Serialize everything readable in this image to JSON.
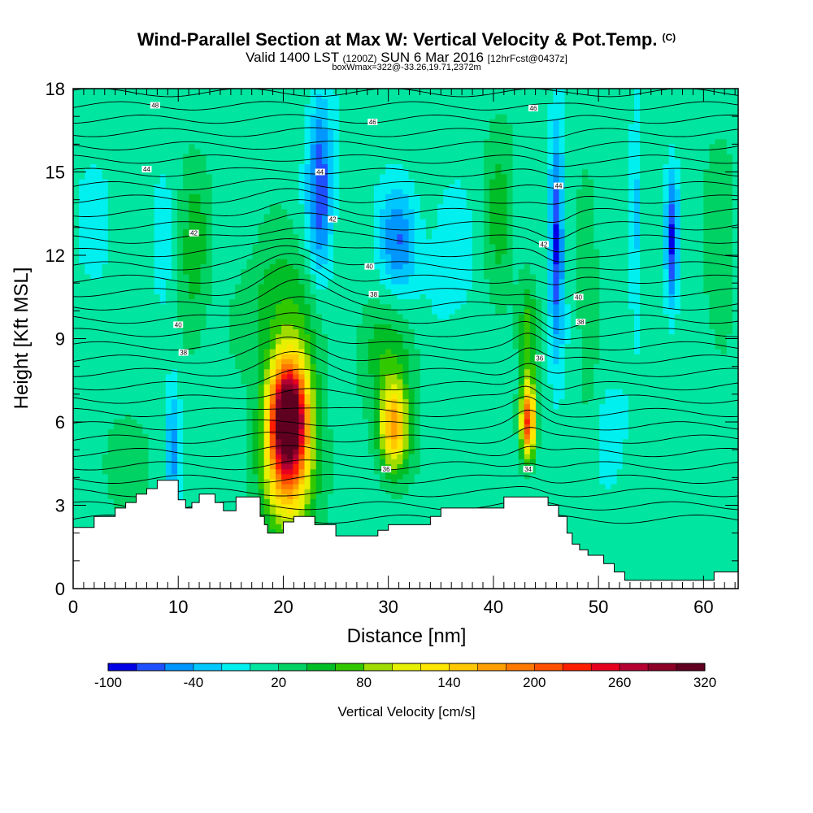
{
  "header": {
    "title": "Wind-Parallel Section at Max W: Vertical Velocity & Pot.Temp.",
    "copyright": "(C)",
    "valid_main": "Valid 1400 LST",
    "valid_utc": "(1200Z)",
    "valid_date": "SUN 6 Mar 2016",
    "forecast": "[12hrFcst@0437z]",
    "boxinfo": "boxWmax=322@-33.26,19.71,2372m"
  },
  "chart_data": {
    "type": "heatmap",
    "title": "Wind-Parallel Section at Max W: Vertical Velocity & Pot.Temp.",
    "xlabel": "Distance [nm]",
    "ylabel": "Height [Kft MSL]",
    "xlim": [
      0,
      63.3
    ],
    "ylim": [
      0,
      18
    ],
    "xticks": [
      0,
      10,
      20,
      30,
      40,
      50,
      60
    ],
    "yticks": [
      0,
      3,
      6,
      9,
      12,
      15,
      18
    ],
    "colorbar": {
      "label": "Vertical Velocity [cm/s]",
      "min": -100,
      "max": 320,
      "step": 20,
      "tick_labels": [
        "-100",
        "-40",
        "20",
        "80",
        "140",
        "200",
        "260",
        "320"
      ],
      "colors": [
        "#0000e6",
        "#1e50ff",
        "#0096ff",
        "#00c8ff",
        "#00f0f0",
        "#00e6a0",
        "#00d264",
        "#00be28",
        "#32c800",
        "#a0dc00",
        "#e6f000",
        "#ffe600",
        "#ffc800",
        "#ffa000",
        "#ff7800",
        "#ff5000",
        "#ff1e00",
        "#e6001e",
        "#b40032",
        "#8c0028",
        "#600020"
      ]
    },
    "background_value": 10,
    "updrafts": [
      {
        "x": 20.5,
        "z": 6.3,
        "sx": 1.8,
        "sz": 2.0,
        "w": 310
      },
      {
        "x": 20.5,
        "z": 4.2,
        "sx": 2.5,
        "sz": 2.6,
        "w": 130
      },
      {
        "x": 30.5,
        "z": 5.8,
        "sx": 1.4,
        "sz": 1.6,
        "w": 160
      },
      {
        "x": 43.3,
        "z": 6.0,
        "sx": 0.7,
        "sz": 1.3,
        "w": 210
      },
      {
        "x": 43.3,
        "z": 9.0,
        "sx": 0.8,
        "sz": 2.0,
        "w": 60
      },
      {
        "x": 20.0,
        "z": 10.0,
        "sx": 3.5,
        "sz": 2.5,
        "w": 50
      },
      {
        "x": 11.5,
        "z": 12.0,
        "sx": 1.5,
        "sz": 3.5,
        "w": 40
      },
      {
        "x": 30.0,
        "z": 8.5,
        "sx": 3.0,
        "sz": 2.0,
        "w": 40
      },
      {
        "x": 40.5,
        "z": 13.5,
        "sx": 1.5,
        "sz": 4.0,
        "w": 35
      },
      {
        "x": 49.0,
        "z": 10.0,
        "sx": 1.0,
        "sz": 5.0,
        "w": 30
      },
      {
        "x": 61.5,
        "z": 12.0,
        "sx": 1.5,
        "sz": 5.0,
        "w": 25
      },
      {
        "x": 5.0,
        "z": 4.5,
        "sx": 3.0,
        "sz": 1.8,
        "w": 20
      },
      {
        "x": 55.0,
        "z": 2.0,
        "sx": 5.0,
        "sz": 1.3,
        "w": 10
      }
    ],
    "downdrafts": [
      {
        "x": 23.5,
        "z": 14.5,
        "sx": 1.2,
        "sz": 3.5,
        "w": -85
      },
      {
        "x": 31.0,
        "z": 12.5,
        "sx": 1.8,
        "sz": 2.0,
        "w": -70
      },
      {
        "x": 46.0,
        "z": 12.5,
        "sx": 0.7,
        "sz": 4.0,
        "w": -95
      },
      {
        "x": 57.0,
        "z": 12.5,
        "sx": 0.6,
        "sz": 2.5,
        "w": -90
      },
      {
        "x": 53.5,
        "z": 13.5,
        "sx": 0.5,
        "sz": 3.0,
        "w": -45
      },
      {
        "x": 9.5,
        "z": 5.0,
        "sx": 0.7,
        "sz": 2.5,
        "w": -55
      },
      {
        "x": 8.5,
        "z": 12.0,
        "sx": 1.0,
        "sz": 3.0,
        "w": -20
      },
      {
        "x": 2.0,
        "z": 13.0,
        "sx": 2.0,
        "sz": 3.0,
        "w": -15
      },
      {
        "x": 36.0,
        "z": 11.5,
        "sx": 2.5,
        "sz": 3.0,
        "w": -20
      },
      {
        "x": 51.0,
        "z": 6.0,
        "sx": 3.0,
        "sz": 2.5,
        "w": -15
      }
    ],
    "terrain": {
      "x": [
        0,
        2,
        4,
        5,
        6,
        7,
        8,
        9.5,
        10,
        10.7,
        11.3,
        12,
        13.5,
        14.3,
        15.5,
        17.2,
        17.8,
        18.2,
        18.5,
        19,
        20,
        21,
        23,
        25,
        27,
        28,
        29,
        30,
        32,
        34,
        35,
        40,
        41,
        42.3,
        44,
        45.2,
        46.2,
        47,
        47.5,
        48.2,
        49,
        50.5,
        51.5,
        52.5,
        53.5,
        54.5,
        55.5,
        58,
        59,
        60,
        61,
        62,
        63.3
      ],
      "z": [
        2.2,
        2.6,
        2.9,
        3.1,
        3.4,
        3.6,
        3.9,
        3.9,
        3.2,
        2.9,
        3.1,
        3.4,
        3.1,
        2.8,
        3.3,
        3.3,
        2.6,
        2.3,
        2.0,
        2.0,
        2.4,
        2.6,
        2.3,
        1.9,
        1.9,
        1.9,
        2.1,
        2.3,
        2.3,
        2.6,
        2.9,
        2.9,
        3.3,
        3.3,
        3.3,
        3.0,
        2.6,
        2.0,
        1.6,
        1.4,
        1.2,
        0.9,
        0.6,
        0.3,
        0.3,
        0.3,
        0.3,
        0.3,
        0.3,
        0.3,
        0.6,
        0.6,
        0.6
      ]
    },
    "theta_labels": [
      {
        "text": "48",
        "x": 7.8,
        "z": 17.4
      },
      {
        "text": "46",
        "x": 28.5,
        "z": 16.8
      },
      {
        "text": "46",
        "x": 43.8,
        "z": 17.3
      },
      {
        "text": "44",
        "x": 7.0,
        "z": 15.1
      },
      {
        "text": "44",
        "x": 23.5,
        "z": 15.0
      },
      {
        "text": "44",
        "x": 46.2,
        "z": 14.5
      },
      {
        "text": "42",
        "x": 11.5,
        "z": 12.8
      },
      {
        "text": "42",
        "x": 24.7,
        "z": 13.3
      },
      {
        "text": "42",
        "x": 44.8,
        "z": 12.4
      },
      {
        "text": "40",
        "x": 28.2,
        "z": 11.6
      },
      {
        "text": "40",
        "x": 10.0,
        "z": 9.5
      },
      {
        "text": "40",
        "x": 48.1,
        "z": 10.5
      },
      {
        "text": "38",
        "x": 28.6,
        "z": 10.6
      },
      {
        "text": "38",
        "x": 48.3,
        "z": 9.6
      },
      {
        "text": "38",
        "x": 10.5,
        "z": 8.5
      },
      {
        "text": "36",
        "x": 44.4,
        "z": 8.3
      },
      {
        "text": "36",
        "x": 29.8,
        "z": 4.3
      },
      {
        "text": "34",
        "x": 43.3,
        "z": 4.3
      }
    ]
  }
}
